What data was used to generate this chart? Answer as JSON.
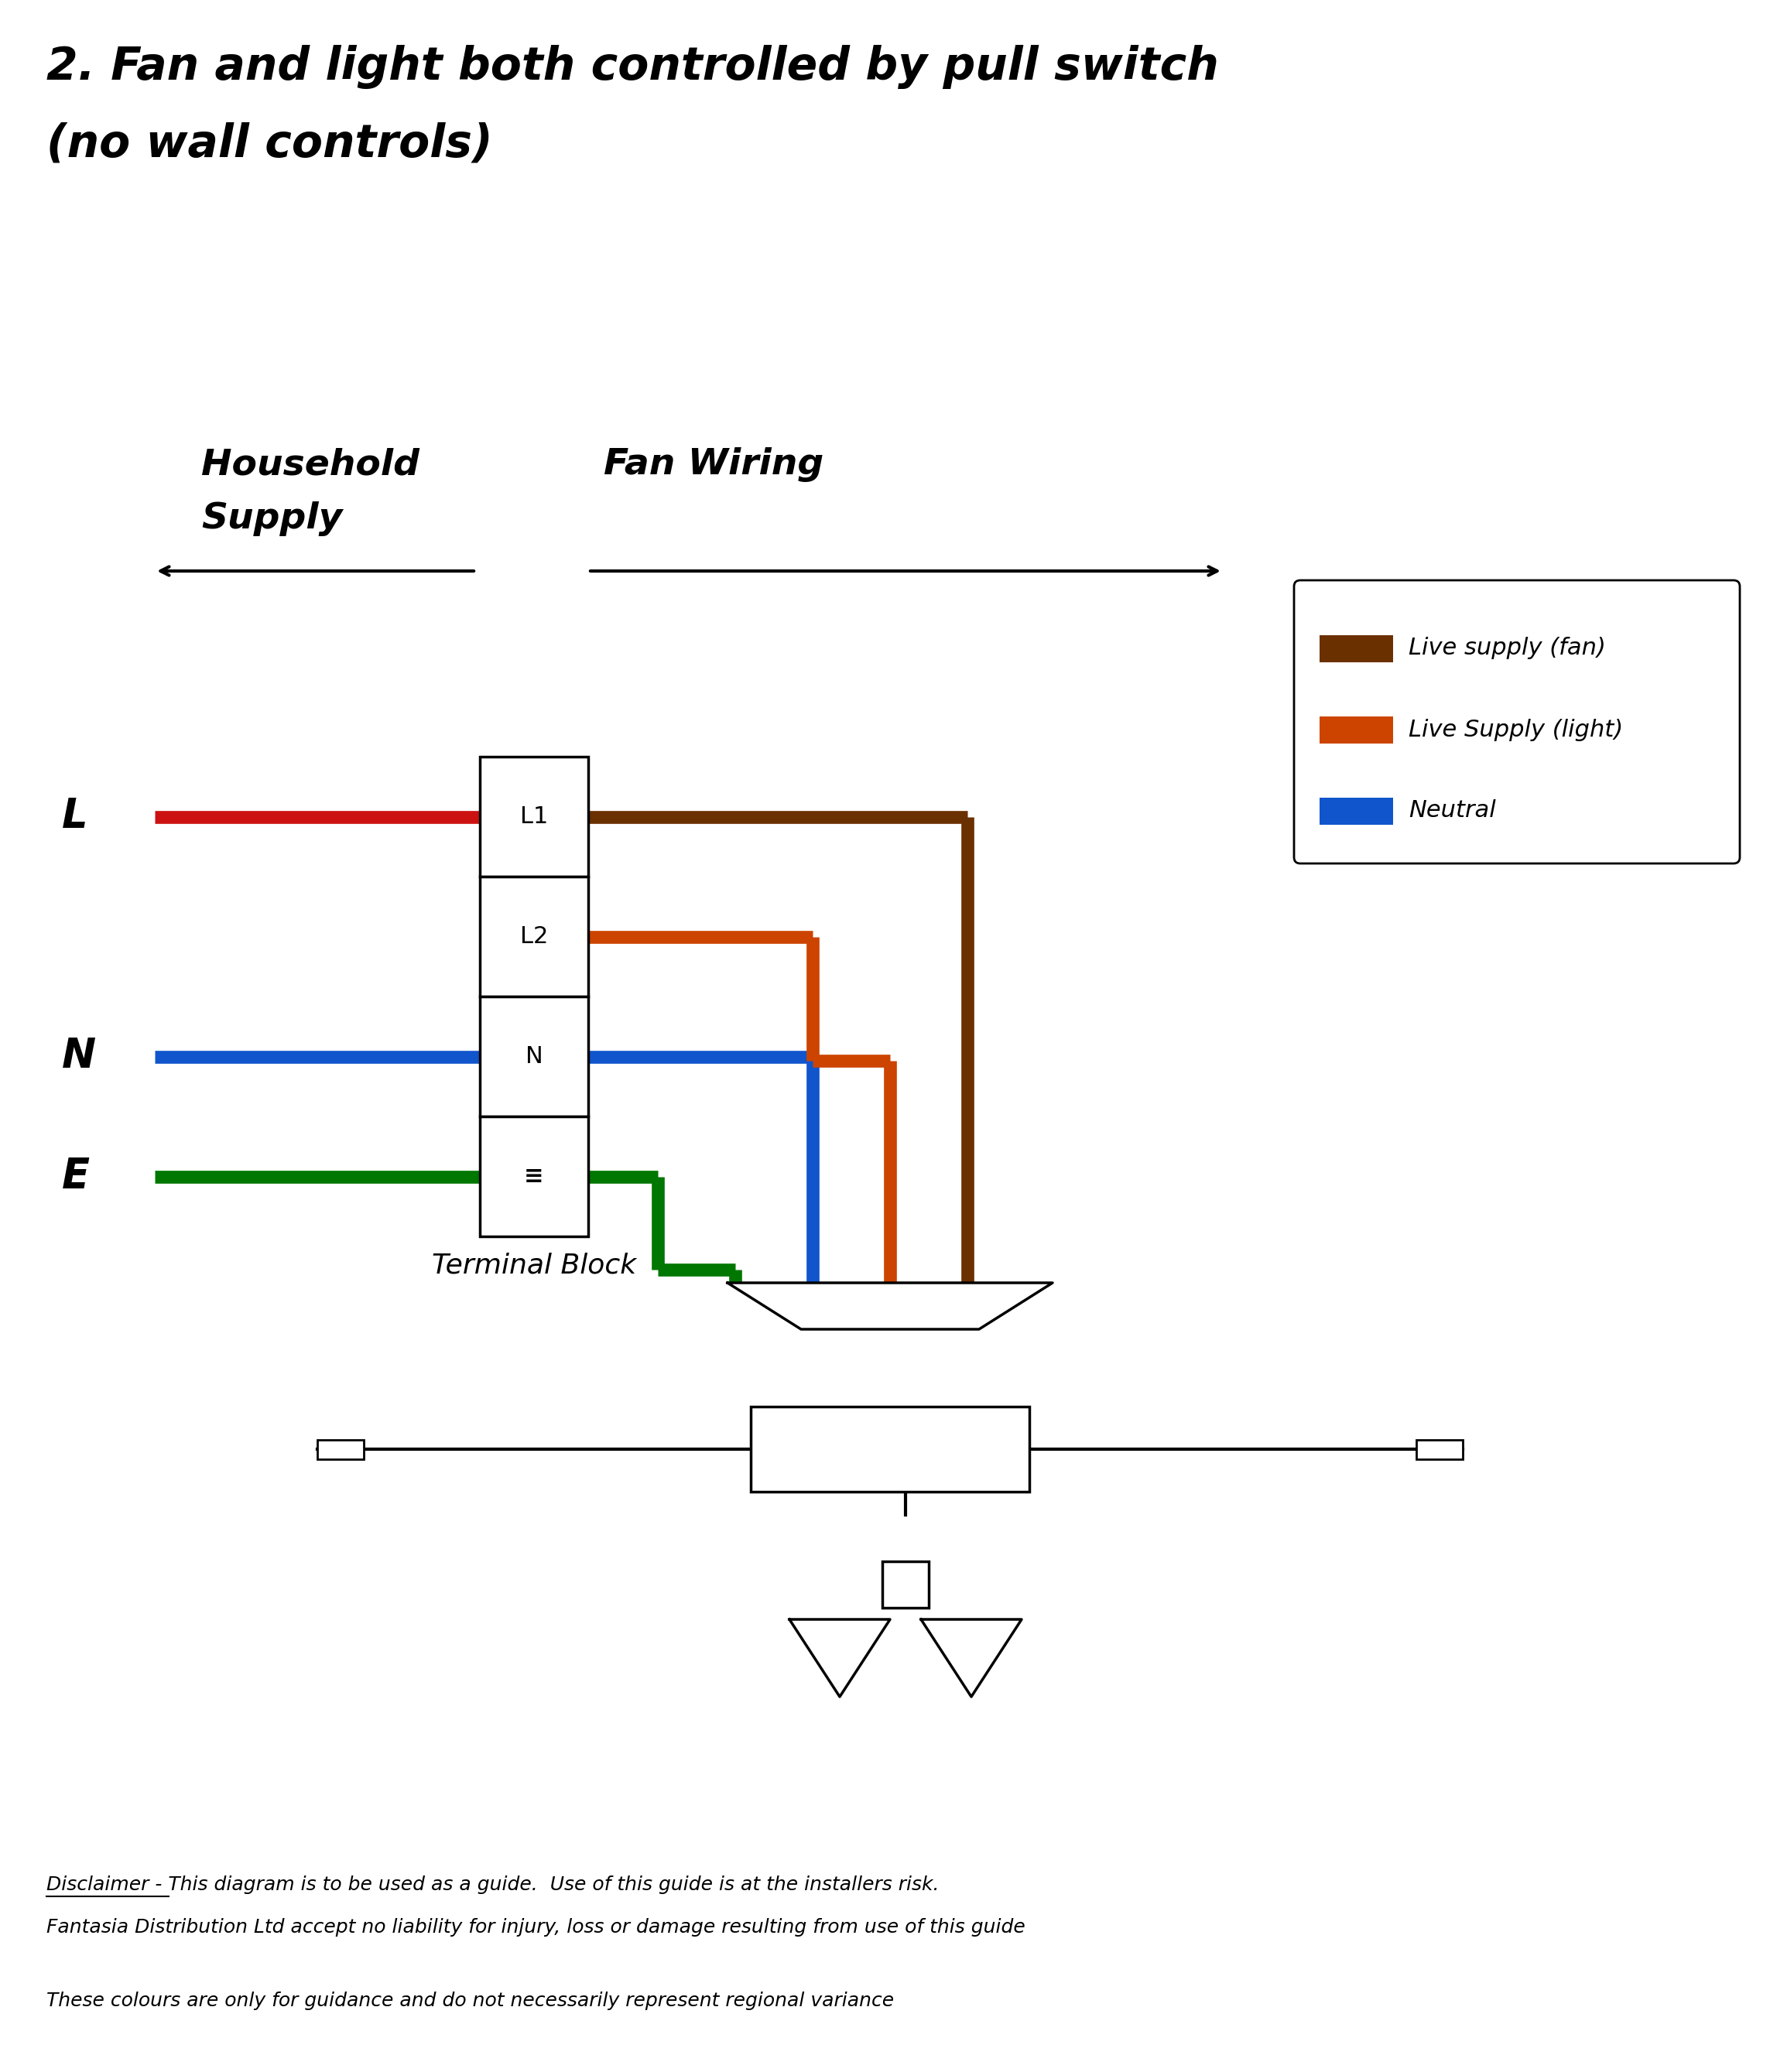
{
  "title_line1": "2. Fan and light both controlled by pull switch",
  "title_line2": "(no wall controls)",
  "label_L": "L",
  "label_N": "N",
  "label_E": "E",
  "terminal_labels": [
    "L1",
    "L2",
    "N",
    "≡"
  ],
  "terminal_block_label": "Terminal Block",
  "legend_items": [
    {
      "label": "Live supply (fan)",
      "color": "#6B3000"
    },
    {
      "label": "Live Supply (light)",
      "color": "#CC4400"
    },
    {
      "label": "Neutral",
      "color": "#1155CC"
    }
  ],
  "wire_colors": {
    "red": "#CC1111",
    "brown": "#6B3000",
    "orange": "#CC4400",
    "blue": "#1155CC",
    "green": "#007700"
  },
  "disclaimer_line1": "Disclaimer - This diagram is to be used as a guide.  Use of this guide is at the installers risk.",
  "disclaimer_line2": "Fantasia Distribution Ltd accept no liability for injury, loss or damage resulting from use of this guide",
  "disclaimer_line3": "These colours are only for guidance and do not necessarily represent regional variance",
  "bg_color": "#ffffff",
  "title_fontsize": 42,
  "label_fontsize": 38,
  "terminal_fontsize": 22,
  "legend_fontsize": 22,
  "disclaimer_fontsize": 18
}
